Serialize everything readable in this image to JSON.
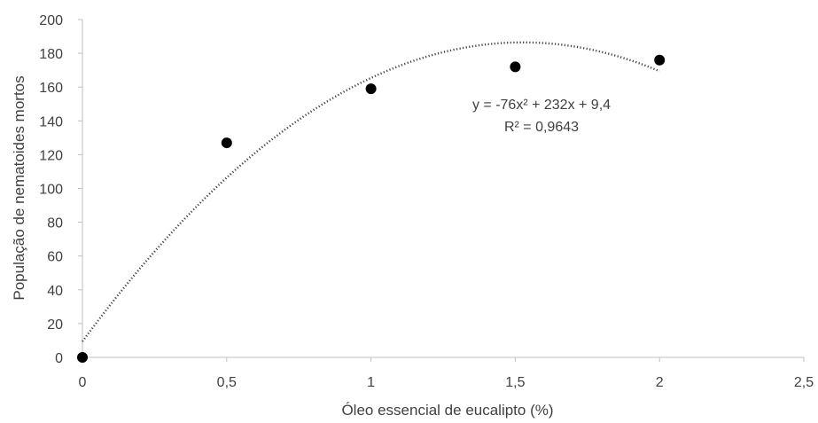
{
  "chart_data": {
    "type": "scatter",
    "title": "",
    "xlabel": "Óleo essencial de eucalipto (%)",
    "ylabel": "População de nematoides mortos",
    "xlim": [
      0,
      2.5
    ],
    "ylim": [
      0,
      200
    ],
    "x_ticks": [
      0,
      0.5,
      1,
      1.5,
      2,
      2.5
    ],
    "x_tick_labels": [
      "0",
      "0,5",
      "1",
      "1,5",
      "2",
      "2,5"
    ],
    "y_ticks": [
      0,
      20,
      40,
      60,
      80,
      100,
      120,
      140,
      160,
      180,
      200
    ],
    "y_tick_labels": [
      "0",
      "20",
      "40",
      "60",
      "80",
      "100",
      "120",
      "140",
      "160",
      "180",
      "200"
    ],
    "grid": false,
    "series": [
      {
        "x": [
          0,
          0.5,
          1,
          1.5,
          2
        ],
        "y": [
          0,
          127,
          159,
          172,
          176
        ]
      }
    ],
    "trendline": {
      "type": "polynomial",
      "order": 2,
      "coefficients": [
        -76,
        232,
        9.4
      ],
      "x_range": [
        0,
        2
      ],
      "style": "dotted"
    },
    "annotations": [
      "y = -76x² + 232x + 9,4",
      "R² = 0,9643"
    ],
    "colors": {
      "points": "#000000",
      "trendline": "#404040",
      "axis": "#bfbfbf",
      "text": "#404040"
    }
  }
}
